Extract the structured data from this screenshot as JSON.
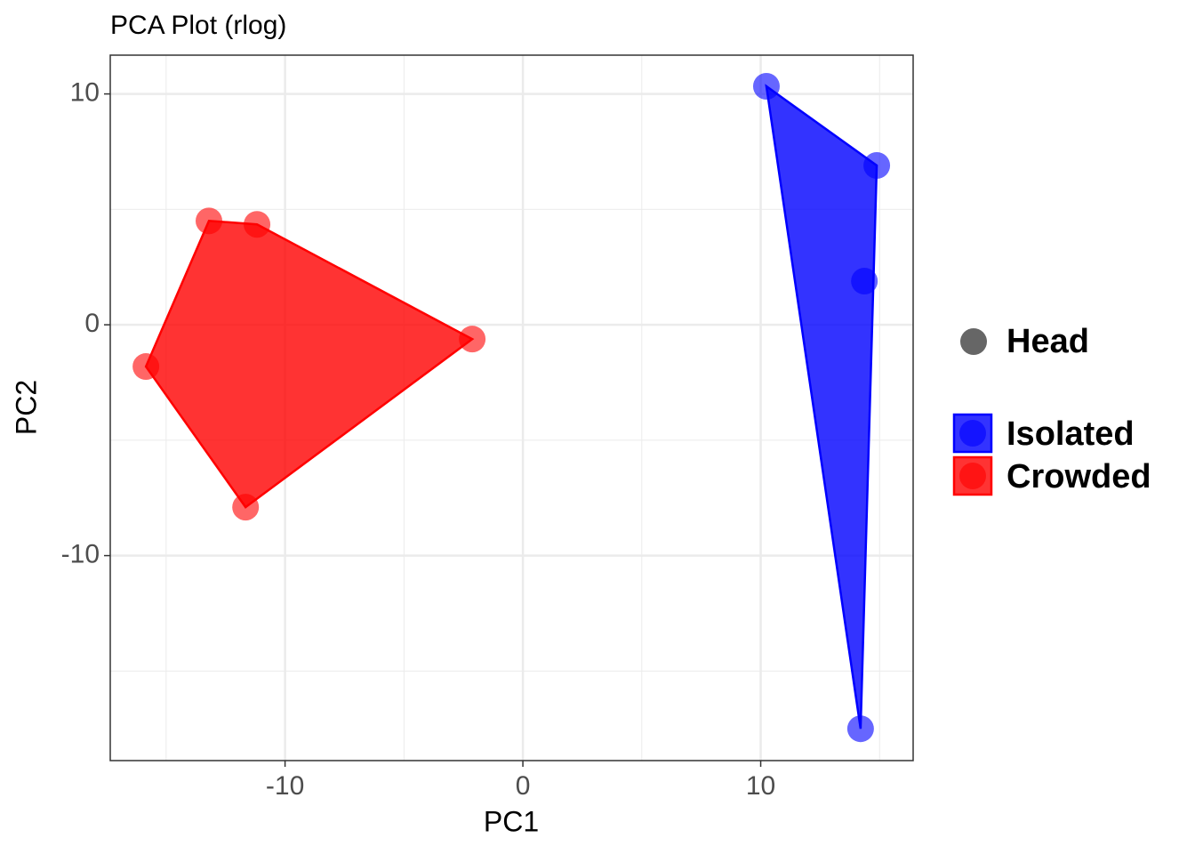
{
  "chart_data": {
    "type": "scatter",
    "title": "PCA Plot (rlog)",
    "x_label": "PC1",
    "y_label": "PC2",
    "xlim": [
      -17.35,
      16.41
    ],
    "ylim": [
      -18.88,
      11.68
    ],
    "xticks": [
      -10,
      0,
      10
    ],
    "yticks": [
      -10,
      0,
      10
    ],
    "x_minor_ticks": [
      -15,
      -5,
      5,
      15
    ],
    "y_minor_ticks": [
      -15,
      -5,
      5
    ],
    "grid": true,
    "hulls": true,
    "legend": "right",
    "shape_legend": "Head",
    "series": [
      {
        "name": "Isolated",
        "color": "#0000ff",
        "x": [
          10.24,
          14.88,
          14.36,
          14.2
        ],
        "values": [
          10.33,
          6.9,
          1.89,
          -17.5
        ]
      },
      {
        "name": "Crowded",
        "color": "#ff0000",
        "x": [
          -13.2,
          -11.18,
          -2.13,
          -15.85,
          -11.66
        ],
        "values": [
          4.5,
          4.35,
          -0.62,
          -1.81,
          -7.9
        ]
      }
    ]
  }
}
